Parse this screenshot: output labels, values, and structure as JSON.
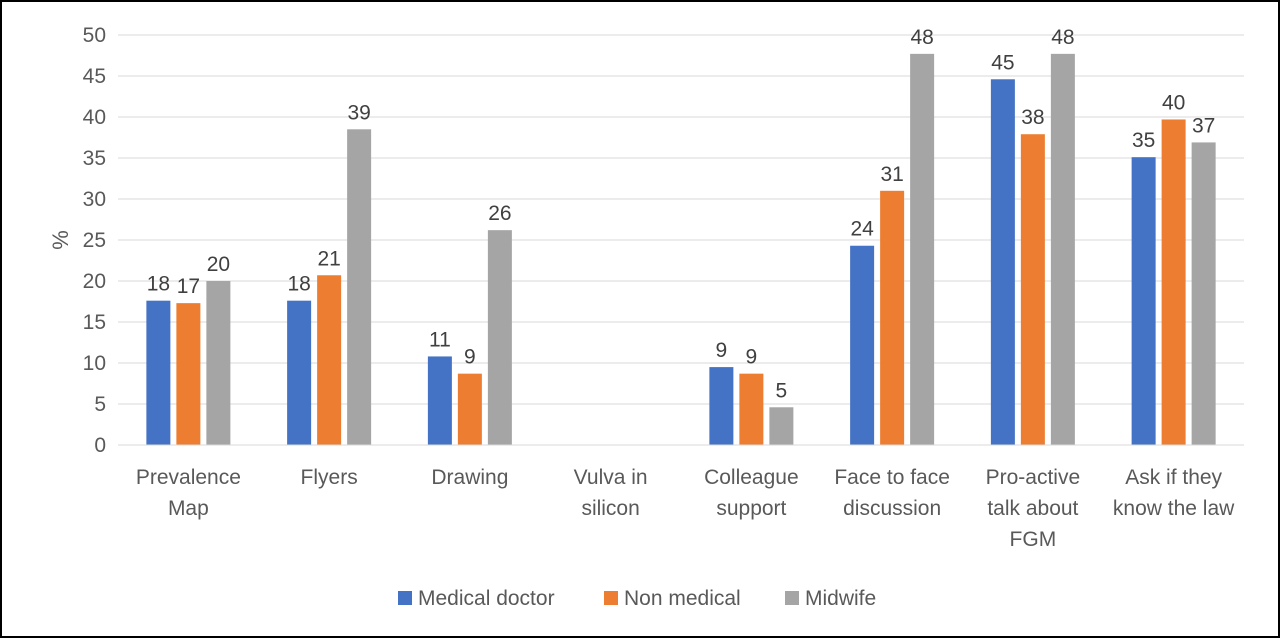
{
  "chart_data": {
    "type": "bar",
    "ylabel": "%",
    "xlabel": "",
    "ylim": [
      0,
      50
    ],
    "yticks": [
      "0",
      "5",
      "10",
      "15",
      "20",
      "25",
      "30",
      "35",
      "40",
      "45",
      "50"
    ],
    "grid": true,
    "legend_position": "bottom",
    "categories": [
      [
        "Prevalence",
        "Map"
      ],
      [
        "Flyers"
      ],
      [
        "Drawing"
      ],
      [
        "Vulva in",
        "silicon"
      ],
      [
        "Colleague",
        "support"
      ],
      [
        "Face to face",
        "discussion"
      ],
      [
        "Pro-active",
        "talk about",
        "FGM"
      ],
      [
        "Ask if they",
        "know the law"
      ]
    ],
    "series": [
      {
        "name": "Medical doctor",
        "color": "#4472C4",
        "values": [
          17.6,
          17.6,
          10.8,
          null,
          9.5,
          24.3,
          44.6,
          35.1
        ],
        "labels": [
          "18",
          "18",
          "11",
          "",
          "9",
          "24",
          "45",
          "35"
        ]
      },
      {
        "name": "Non medical",
        "color": "#ED7D31",
        "values": [
          17.3,
          20.7,
          8.7,
          null,
          8.7,
          31.0,
          37.9,
          39.7
        ],
        "labels": [
          "17",
          "21",
          "9",
          "",
          "9",
          "31",
          "38",
          "40"
        ]
      },
      {
        "name": "Midwife",
        "color": "#A5A5A5",
        "values": [
          20.0,
          38.5,
          26.2,
          null,
          4.6,
          47.7,
          47.7,
          36.9
        ],
        "labels": [
          "20",
          "39",
          "26",
          "",
          "5",
          "48",
          "48",
          "37"
        ]
      }
    ]
  }
}
